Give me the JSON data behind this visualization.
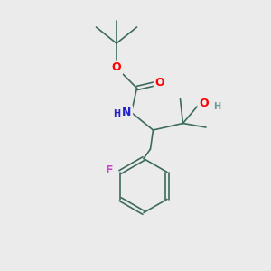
{
  "background_color": "#ebebeb",
  "bond_color": "#3d6b5e",
  "bond_width": 1.2,
  "atom_colors": {
    "O": "#ff0000",
    "N": "#2222cc",
    "F": "#cc44cc",
    "H_OH": "#6a9a92",
    "C": "#3d6b5e"
  },
  "font_size_atoms": 9,
  "font_size_small": 7,
  "xlim": [
    0,
    10
  ],
  "ylim": [
    0,
    10
  ]
}
